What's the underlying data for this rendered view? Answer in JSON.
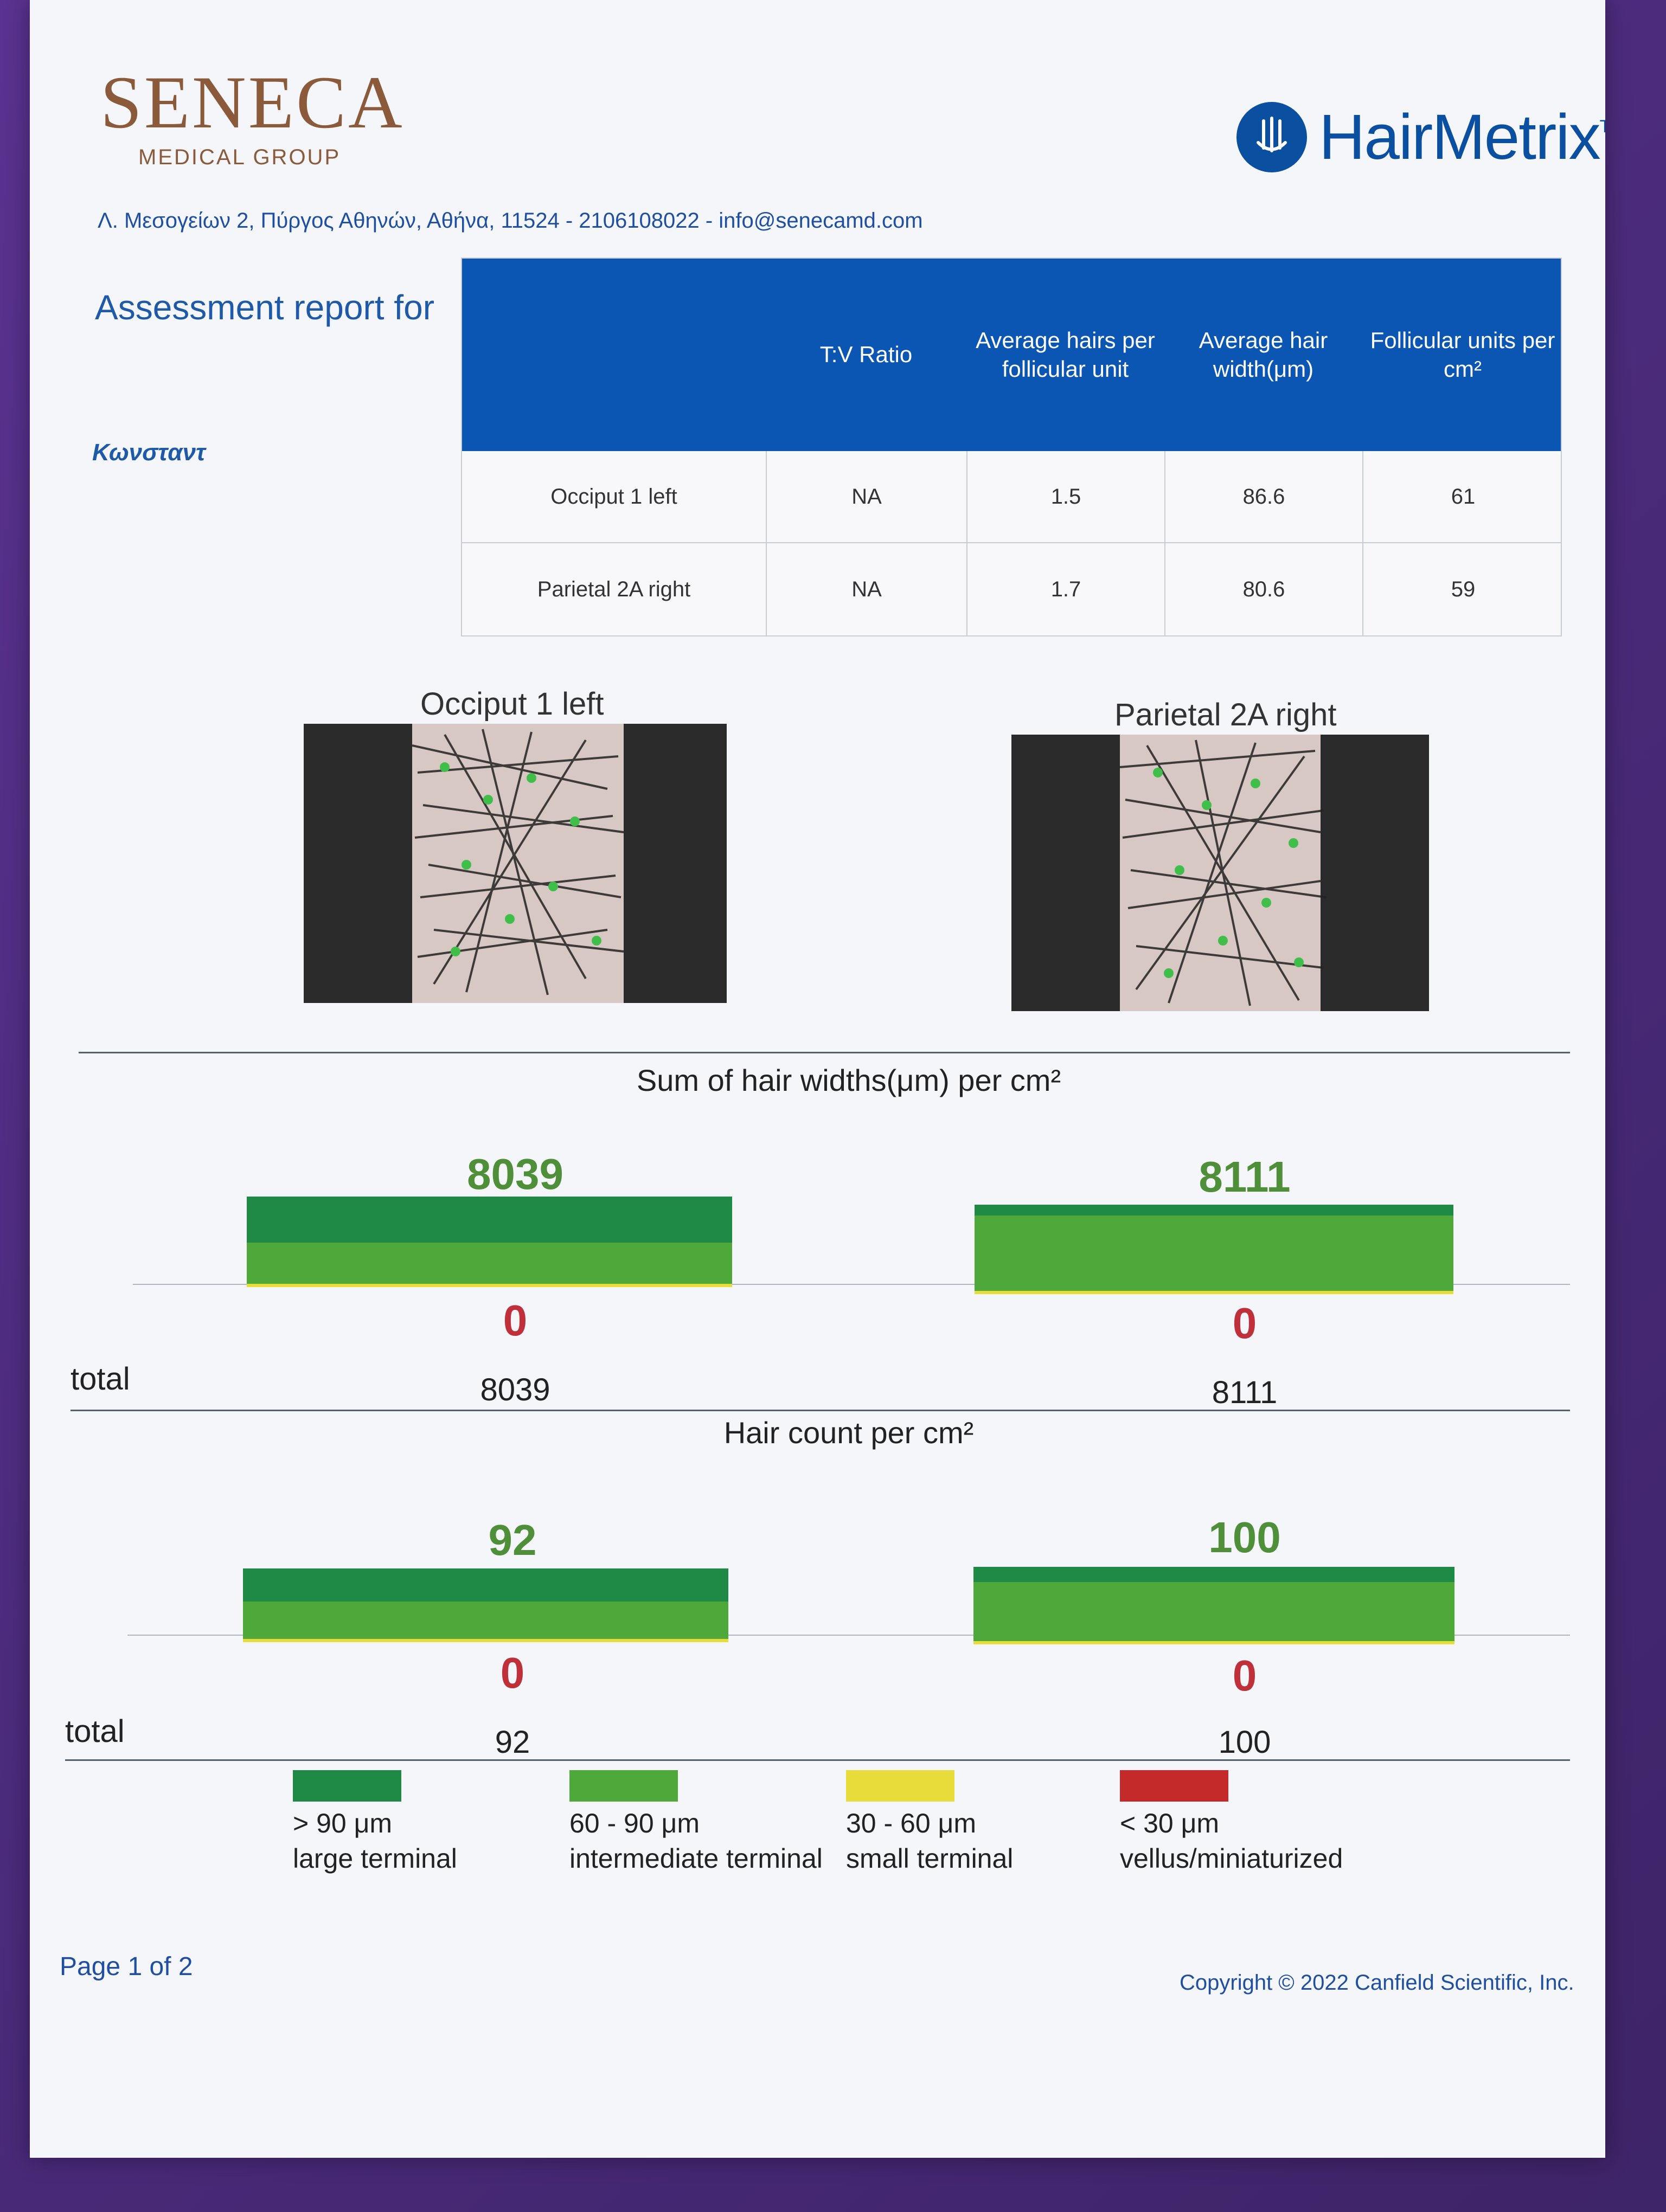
{
  "header": {
    "brand_name": "SENECA",
    "brand_sub": "MEDICAL GROUP",
    "product_name": "HairMetrix",
    "product_tm": "TM",
    "address": "Λ. Μεσογείων 2, Πύργος Αθηνών, Αθήνα, 11524 - 2106108022 - info@senecamd.com"
  },
  "report": {
    "title": "Assessment report for",
    "patient": "Κωνσταντ"
  },
  "table": {
    "columns": [
      "",
      "T:V Ratio",
      "Average hairs per follicular unit",
      "Average hair width(μm)",
      "Follicular units per cm²"
    ],
    "rows": [
      {
        "site": "Occiput 1 left",
        "tv_ratio": "NA",
        "avg_hairs_fu": "1.5",
        "avg_width": "86.6",
        "fu_per_cm2": "61"
      },
      {
        "site": "Parietal 2A right",
        "tv_ratio": "NA",
        "avg_hairs_fu": "1.7",
        "avg_width": "80.6",
        "fu_per_cm2": "59"
      }
    ]
  },
  "images": [
    {
      "title": "Occiput 1 left"
    },
    {
      "title": "Parietal 2A right"
    }
  ],
  "chart_data": [
    {
      "type": "bar",
      "title": "Sum of hair widths(μm) per cm²",
      "categories": [
        "Occiput 1 left",
        "Parietal 2A right"
      ],
      "top_labels": [
        "8039",
        "8111"
      ],
      "bottom_labels": [
        "0",
        "0"
      ],
      "totals": [
        "8039",
        "8111"
      ],
      "total_label": "total",
      "series": [
        {
          "name": "> 90 μm large terminal",
          "values": [
            4200,
            1000
          ]
        },
        {
          "name": "60 - 90 μm intermediate terminal",
          "values": [
            3750,
            7030
          ]
        },
        {
          "name": "30 - 60 μm small terminal",
          "values": [
            89,
            81
          ]
        },
        {
          "name": "< 30 μm vellus/miniaturized",
          "values": [
            0,
            0
          ]
        }
      ]
    },
    {
      "type": "bar",
      "title": "Hair count per cm²",
      "categories": [
        "Occiput 1 left",
        "Parietal 2A right"
      ],
      "top_labels": [
        "92",
        "100"
      ],
      "bottom_labels": [
        "0",
        "0"
      ],
      "totals": [
        "92",
        "100"
      ],
      "total_label": "total",
      "series": [
        {
          "name": "> 90 μm large terminal",
          "values": [
            42,
            20
          ]
        },
        {
          "name": "60 - 90 μm intermediate terminal",
          "values": [
            48,
            78
          ]
        },
        {
          "name": "30 - 60 μm small terminal",
          "values": [
            2,
            2
          ]
        },
        {
          "name": "< 30 μm vellus/miniaturized",
          "values": [
            0,
            0
          ]
        }
      ]
    }
  ],
  "legend": [
    {
      "range": "> 90 μm",
      "label": "large terminal",
      "color": "#1f8a45"
    },
    {
      "range": "60 - 90 μm",
      "label": "intermediate terminal",
      "color": "#4ea83a"
    },
    {
      "range": "30 - 60 μm",
      "label": "small terminal",
      "color": "#e8dc3a"
    },
    {
      "range": "< 30 μm",
      "label": "vellus/miniaturized",
      "color": "#c52a2a"
    }
  ],
  "footer": {
    "page": "Page 1 of 2",
    "copyright": "Copyright © 2022 Canfield Scientific, Inc."
  }
}
